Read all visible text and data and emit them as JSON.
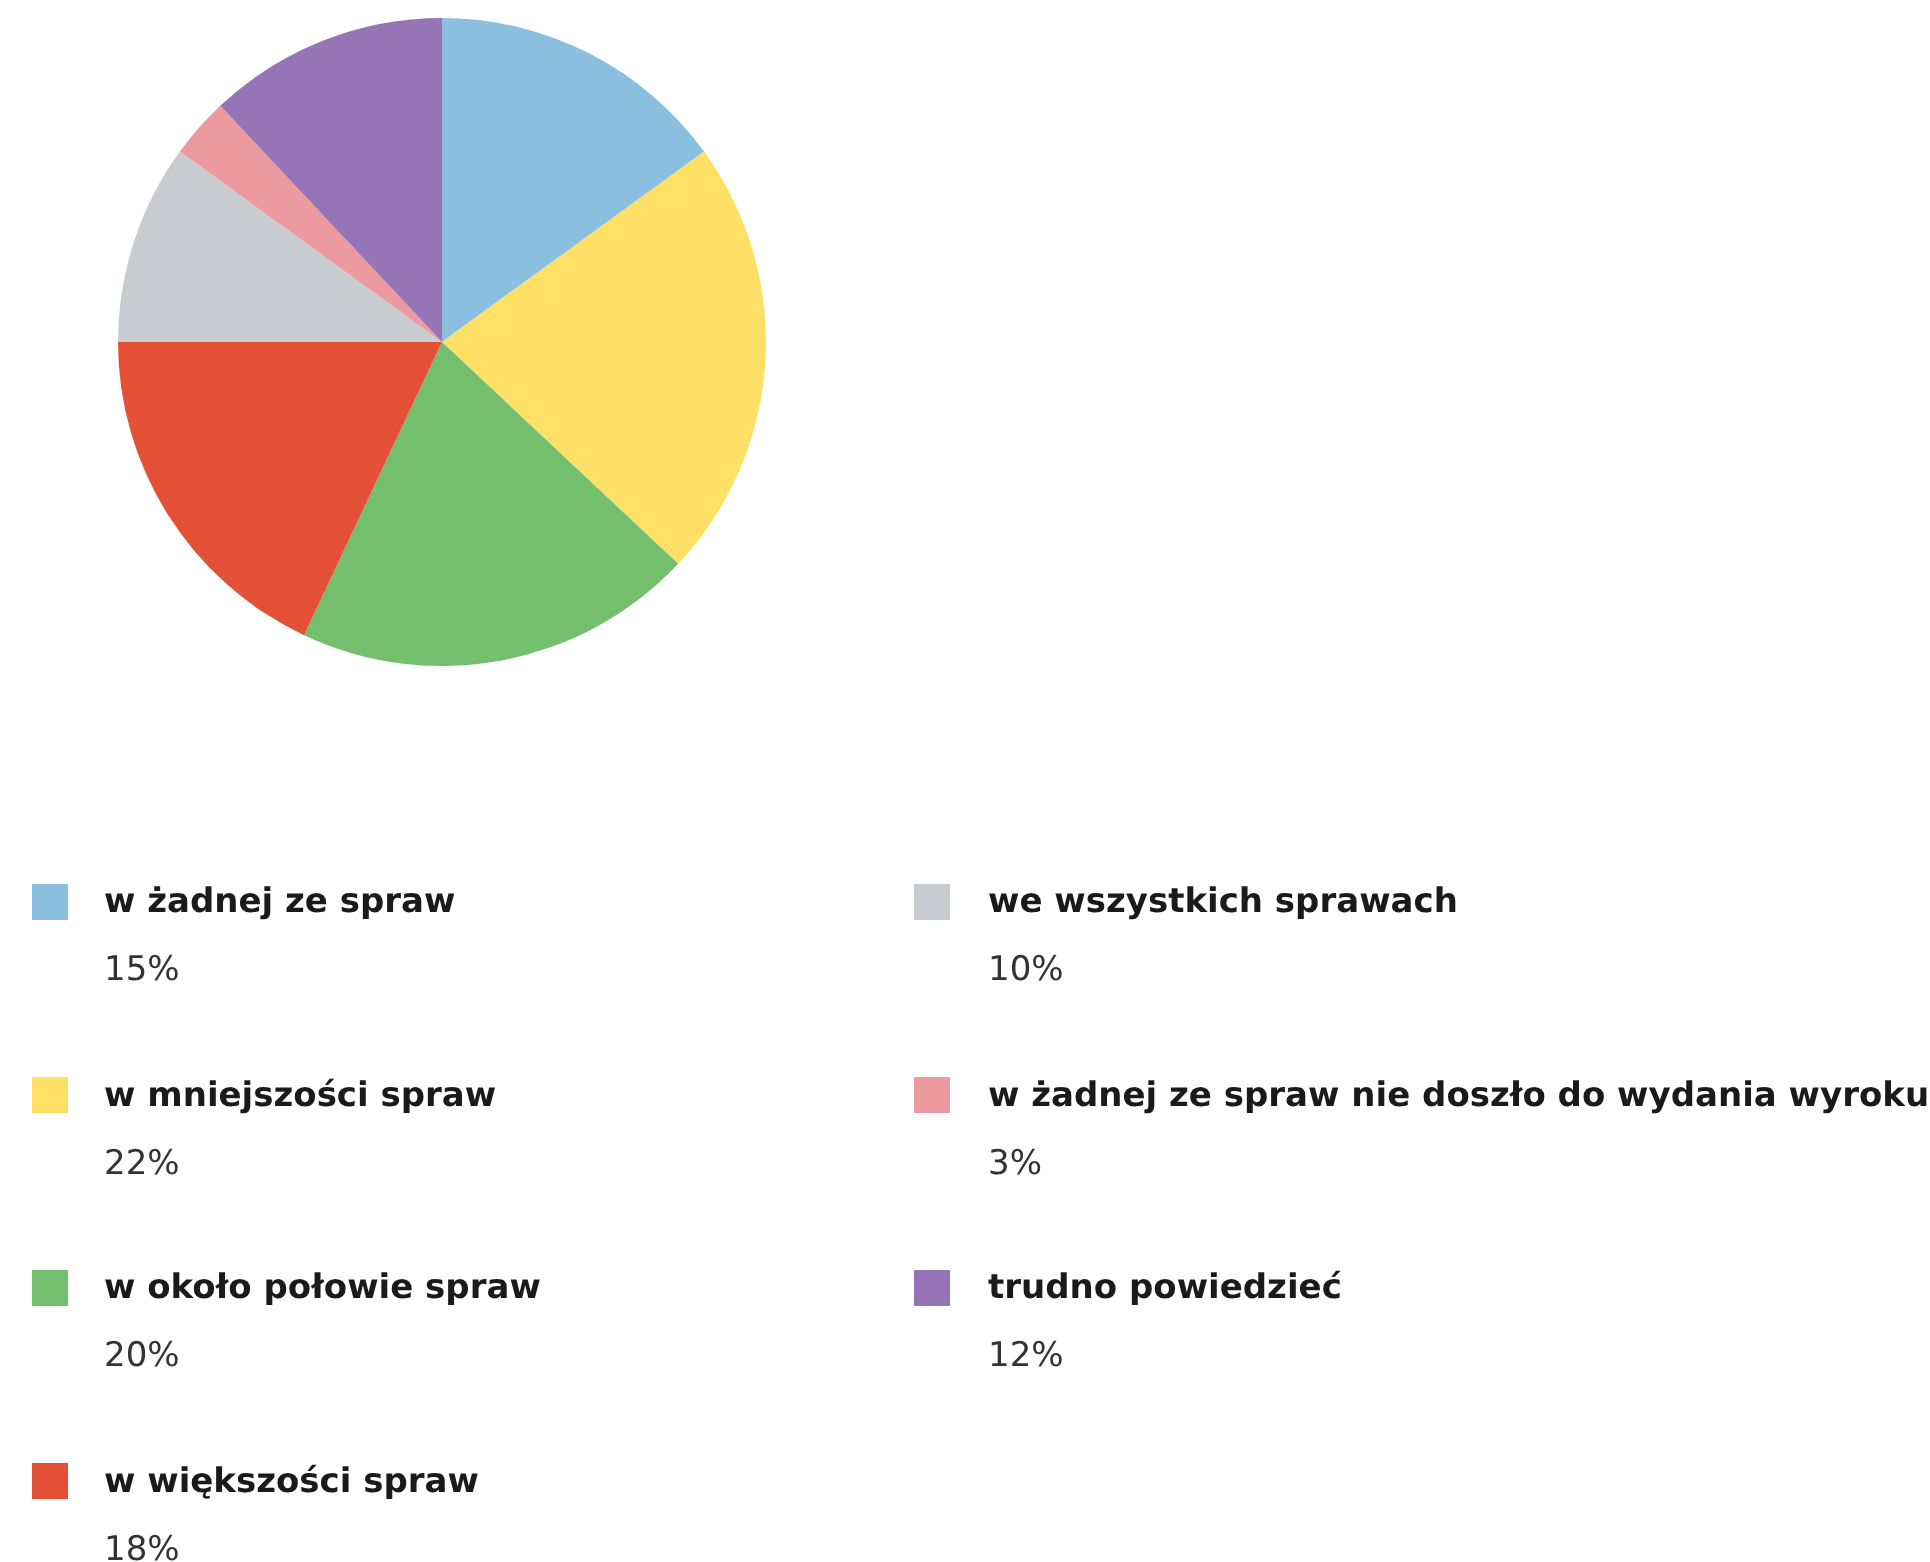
{
  "chart_data": {
    "type": "pie",
    "categories": [
      "w żadnej ze spraw",
      "w mniejszości spraw",
      "w około połowie spraw",
      "w większości spraw",
      "we wszystkich sprawach",
      "w żadnej ze spraw nie doszło do wydania wyroku",
      "trudno powiedzieć"
    ],
    "values": [
      15,
      22,
      20,
      18,
      10,
      3,
      12
    ],
    "value_labels": [
      "15%",
      "22%",
      "20%",
      "18%",
      "10%",
      "3%",
      "12%"
    ],
    "colors": [
      "#8bbfe0",
      "#ffe066",
      "#74bf6e",
      "#e45035",
      "#c8cbd0",
      "#ec9aa0",
      "#9575b6"
    ],
    "legend": "bottom"
  }
}
